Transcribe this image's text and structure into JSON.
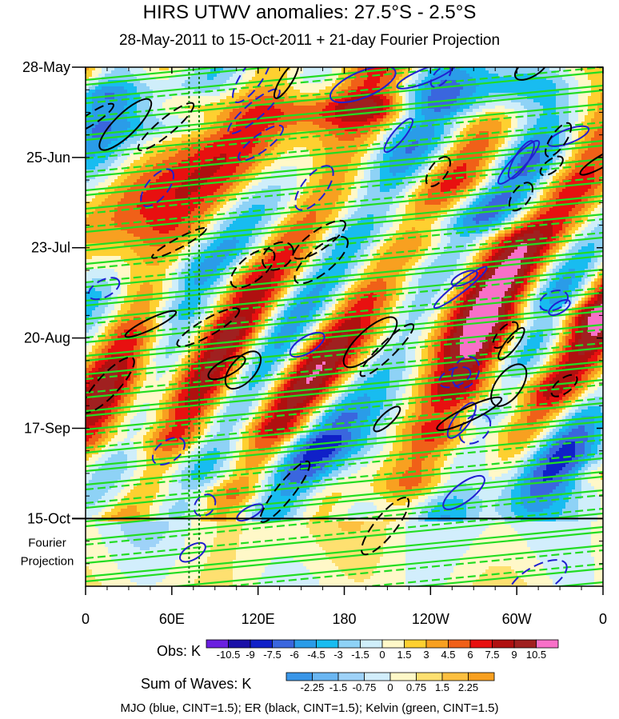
{
  "title": "HIRS UTWV anomalies: 27.5°S - 2.5°S",
  "subtitle": "28-May-2011 to 15-Oct-2011 + 21-day Fourier Projection",
  "footer": "MJO (blue, CINT=1.5); ER (black, CINT=1.5); Kelvin (green, CINT=1.5)",
  "chart_data": {
    "type": "heatmap",
    "title": "HIRS UTWV anomalies: 27.5°S - 2.5°S",
    "subtitle": "28-May-2011 to 15-Oct-2011 + 21-day Fourier Projection",
    "x_tick_labels": [
      "0",
      "60E",
      "120E",
      "180",
      "120W",
      "60W",
      "0"
    ],
    "x_ticks_deg_east": [
      0,
      60,
      120,
      180,
      240,
      300,
      360
    ],
    "xlim_deg_east": [
      0,
      360
    ],
    "y_tick_labels": [
      "28-May",
      "25-Jun",
      "23-Jul",
      "20-Aug",
      "17-Sep",
      "15-Oct"
    ],
    "y_ticks": [
      "2011-05-28",
      "2011-06-25",
      "2011-07-23",
      "2011-08-20",
      "2011-09-17",
      "2011-10-15"
    ],
    "ylim": [
      "2011-05-28",
      "2011-11-05"
    ],
    "projection_start": "2011-10-15",
    "projection_end": "2011-11-05",
    "projection_label": "Fourier\nProjection",
    "vertical_reference_lines_deg_east": [
      72,
      79
    ],
    "obs_colorbar": {
      "label": "Obs: K",
      "levels": [
        "-10.5",
        "-9",
        "-7.5",
        "-6",
        "-4.5",
        "-3",
        "-1.5",
        "0",
        "1.5",
        "3",
        "4.5",
        "6",
        "7.5",
        "9",
        "10.5"
      ],
      "colors": [
        "#6a1fe0",
        "#1a10a8",
        "#1020c8",
        "#3a66de",
        "#2a9ce8",
        "#18bcf0",
        "#8ed2f6",
        "#cfeefa",
        "#fff8c8",
        "#fed030",
        "#f8a020",
        "#f06018",
        "#e81010",
        "#b01010",
        "#a02020",
        "#f870c8"
      ]
    },
    "sum_colorbar": {
      "label": "Sum of Waves: K",
      "levels": [
        "-2.25",
        "-1.5",
        "-0.75",
        "0",
        "0.75",
        "1.5",
        "2.25"
      ],
      "colors": [
        "#3a96e8",
        "#6ab6f2",
        "#9ed2f8",
        "#d2eefc",
        "#fff8c8",
        "#fee070",
        "#fdc040",
        "#f8a020"
      ]
    },
    "contours": [
      {
        "name": "MJO",
        "color": "#2020d0",
        "cint": 1.5
      },
      {
        "name": "ER",
        "color": "#000000",
        "cint": 1.5
      },
      {
        "name": "Kelvin",
        "color": "#22dd22",
        "cint": 1.5
      }
    ]
  }
}
